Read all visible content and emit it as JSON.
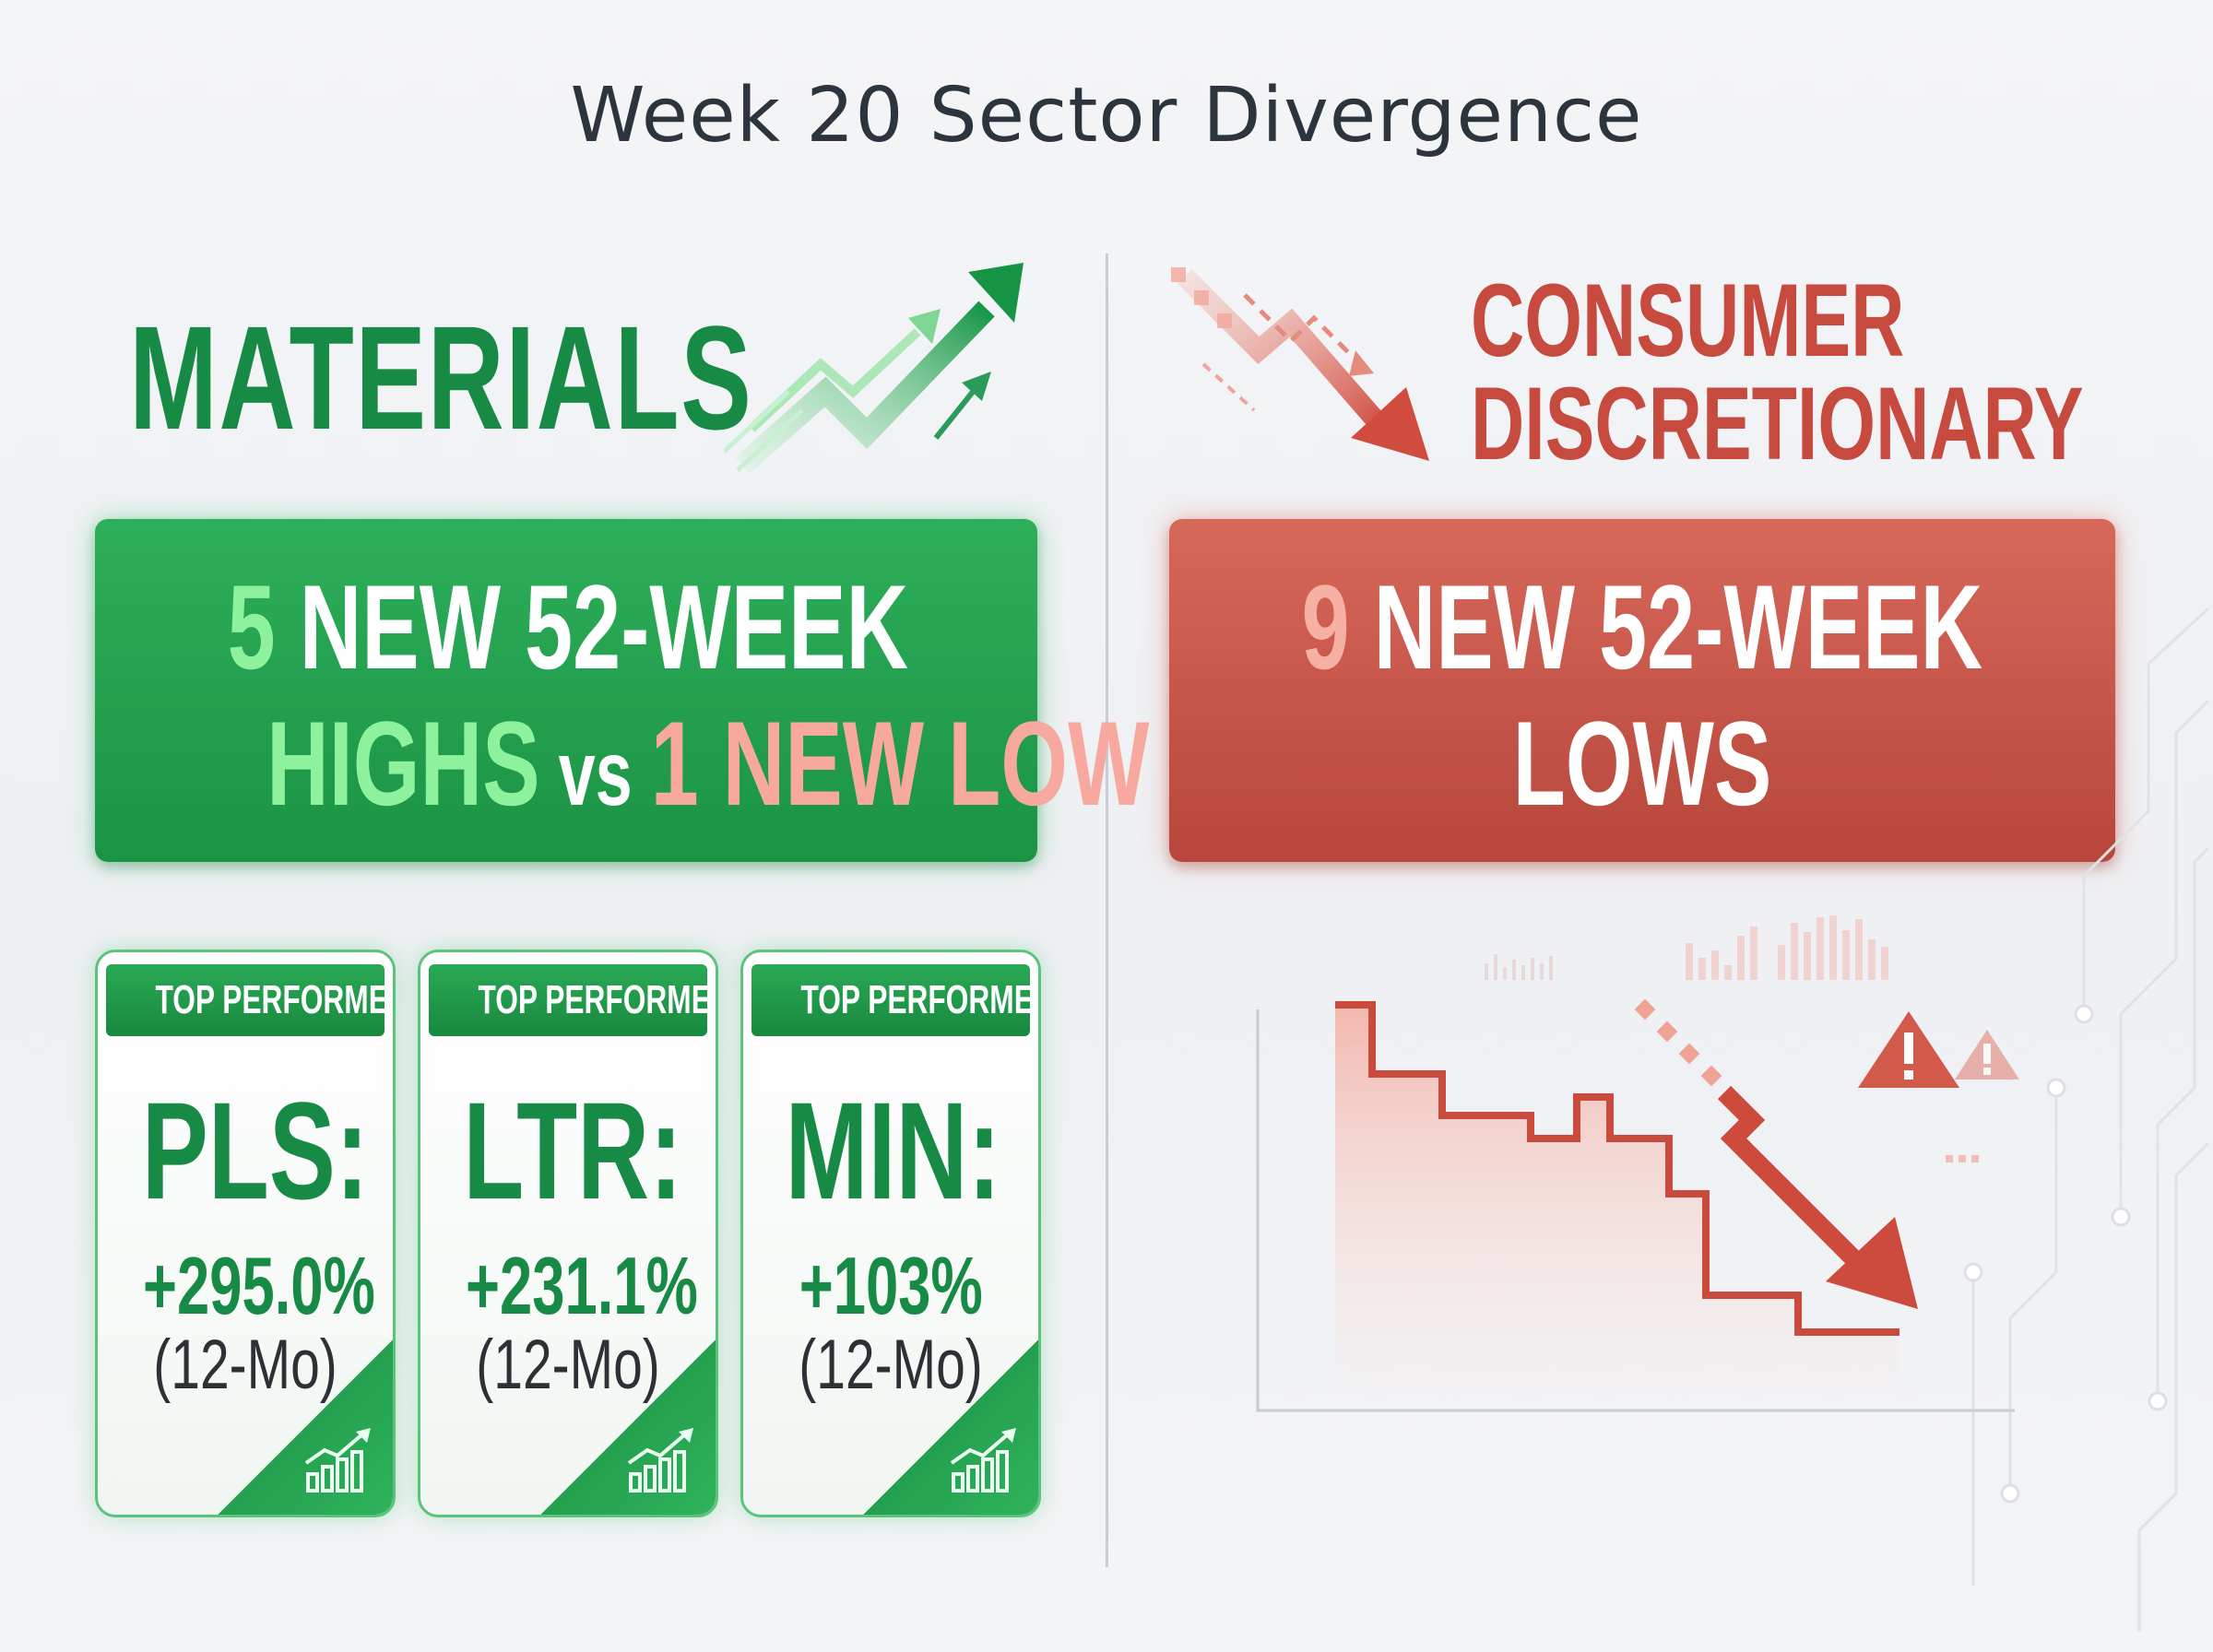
{
  "title": "Week 20 Sector Divergence",
  "left": {
    "sector": "MATERIALS",
    "accent_color": "#178a45",
    "headline": {
      "highs_count": "5",
      "line1_rest": " NEW 52-WEEK",
      "highs_word": "HIGHS",
      "vs": " vs ",
      "low_text": "1 NEW LOW"
    },
    "cards": [
      {
        "tag": "TOP PERFORMER",
        "ticker": "PLS:",
        "change": "+295.0%",
        "period": "(12-Mo)",
        "icon": "rising-bars-icon"
      },
      {
        "tag": "TOP PERFORMER",
        "ticker": "LTR:",
        "change": "+231.1%",
        "period": "(12-Mo)",
        "icon": "rising-bars-icon"
      },
      {
        "tag": "TOP PERFORMER",
        "ticker": "MIN:",
        "change": "+103%",
        "period": "(12-Mo)",
        "icon": "rising-bars-icon"
      }
    ]
  },
  "right": {
    "sector_line1": "CONSUMER",
    "sector_line2": "DISCRETIONARY",
    "accent_color": "#c64a3d",
    "headline": {
      "lows_count": "9",
      "line1_rest": " NEW 52-WEEK",
      "line2": "LOWS"
    },
    "chart_icons": [
      "down-arrow-icon",
      "warning-icon",
      "warning-icon"
    ]
  }
}
